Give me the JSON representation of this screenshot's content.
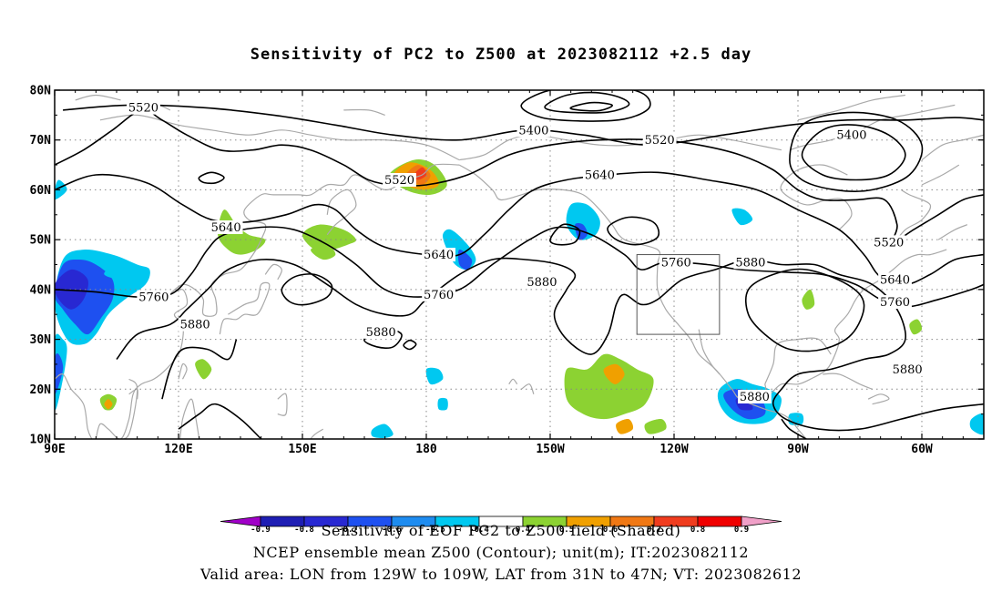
{
  "chart_data": {
    "type": "map-contour",
    "title": "Sensitivity of PC2 to Z500 at 2023082112 +2.5 day",
    "x_ticks": [
      "90E",
      "120E",
      "150E",
      "180",
      "150W",
      "120W",
      "90W",
      "60W"
    ],
    "y_ticks": [
      "10N",
      "20N",
      "30N",
      "40N",
      "50N",
      "60N",
      "70N",
      "80N"
    ],
    "lon_range": [
      90,
      315
    ],
    "lat_range": [
      10,
      80
    ],
    "grid": true,
    "contour_labels": [
      {
        "text": "5520",
        "lon": 111.5,
        "lat": 76.5
      },
      {
        "text": "5520",
        "lon": 173.5,
        "lat": 62.0
      },
      {
        "text": "5520",
        "lon": 236.5,
        "lat": 70.0
      },
      {
        "text": "5520",
        "lon": 292.0,
        "lat": 49.5
      },
      {
        "text": "5400",
        "lon": 206.0,
        "lat": 72.0
      },
      {
        "text": "5400",
        "lon": 283.0,
        "lat": 71.0
      },
      {
        "text": "5640",
        "lon": 131.5,
        "lat": 52.5
      },
      {
        "text": "5640",
        "lon": 183.0,
        "lat": 47.0
      },
      {
        "text": "5640",
        "lon": 222.0,
        "lat": 63.0
      },
      {
        "text": "5640",
        "lon": 293.5,
        "lat": 42.0
      },
      {
        "text": "5760",
        "lon": 114.0,
        "lat": 38.5
      },
      {
        "text": "5760",
        "lon": 183.0,
        "lat": 39.0
      },
      {
        "text": "5760",
        "lon": 240.5,
        "lat": 45.5
      },
      {
        "text": "5760",
        "lon": 293.5,
        "lat": 37.5
      },
      {
        "text": "5880",
        "lon": 124.0,
        "lat": 33.0
      },
      {
        "text": "5880",
        "lon": 208.0,
        "lat": 41.5
      },
      {
        "text": "5880",
        "lon": 169.0,
        "lat": 31.5
      },
      {
        "text": "5880",
        "lon": 258.5,
        "lat": 45.5
      },
      {
        "text": "5880",
        "lon": 296.5,
        "lat": 24.0
      },
      {
        "text": "5880",
        "lon": 259.5,
        "lat": 18.5
      }
    ],
    "valid_box": {
      "lon_min": 231,
      "lon_max": 251,
      "lat_min": 31,
      "lat_max": 47
    },
    "colorbar": {
      "levels": [
        "-0.9",
        "-0.8",
        "-0.7",
        "-0.6",
        "-0.5",
        "-0.4",
        "0.4",
        "0.5",
        "0.6",
        "0.7",
        "0.8",
        "0.9"
      ],
      "colors": [
        "#a000c8",
        "#1e1eb4",
        "#2828d2",
        "#1e50f0",
        "#1e8cf0",
        "#00c8f0",
        "#ffffff",
        "#8cd232",
        "#f0a000",
        "#f07814",
        "#f03c1e",
        "#f00000",
        "#f0a0c8"
      ]
    }
  },
  "footer": {
    "line1": "Sensitivity of EOF PC2 to Z500 field (Shaded)",
    "line2": "NCEP ensemble mean Z500 (Contour); unit(m); IT:2023082112",
    "line3": "Valid area: LON from 129W to 109W, LAT from 31N to 47N; VT: 2023082612"
  }
}
